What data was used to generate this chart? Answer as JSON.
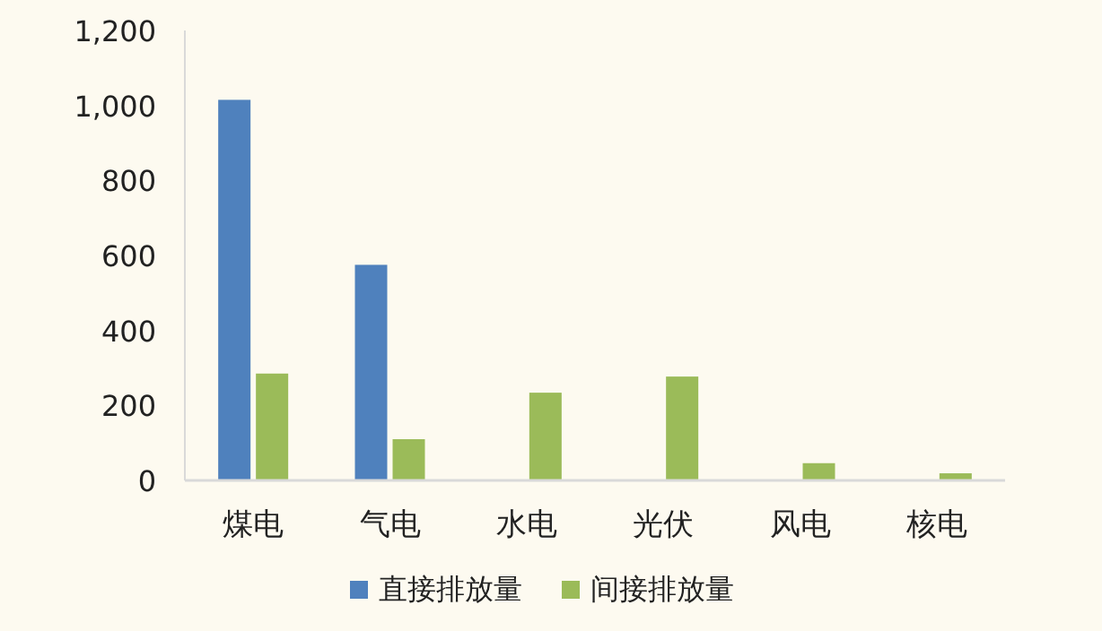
{
  "chart_data": {
    "type": "bar",
    "categories": [
      "煤电",
      "气电",
      "水电",
      "光伏",
      "风电",
      "核电"
    ],
    "series": [
      {
        "name": "直接排放量",
        "color": "#4f81bd",
        "values": [
          1015,
          575,
          null,
          null,
          null,
          null
        ]
      },
      {
        "name": "间接排放量",
        "color": "#9bbb59",
        "values": [
          285,
          110,
          234,
          277,
          46,
          19
        ]
      }
    ],
    "ylim": [
      0,
      1200
    ],
    "yticks": [
      0,
      {
        "value": 200,
        "label": "200"
      },
      {
        "value": 400,
        "label": "400"
      },
      {
        "value": 600,
        "label": "600"
      },
      {
        "value": 800,
        "label": "800"
      },
      {
        "value": 1000,
        "label": "1,000"
      },
      {
        "value": 1200,
        "label": "1,200"
      }
    ],
    "grid": false,
    "legend": "bottom"
  }
}
